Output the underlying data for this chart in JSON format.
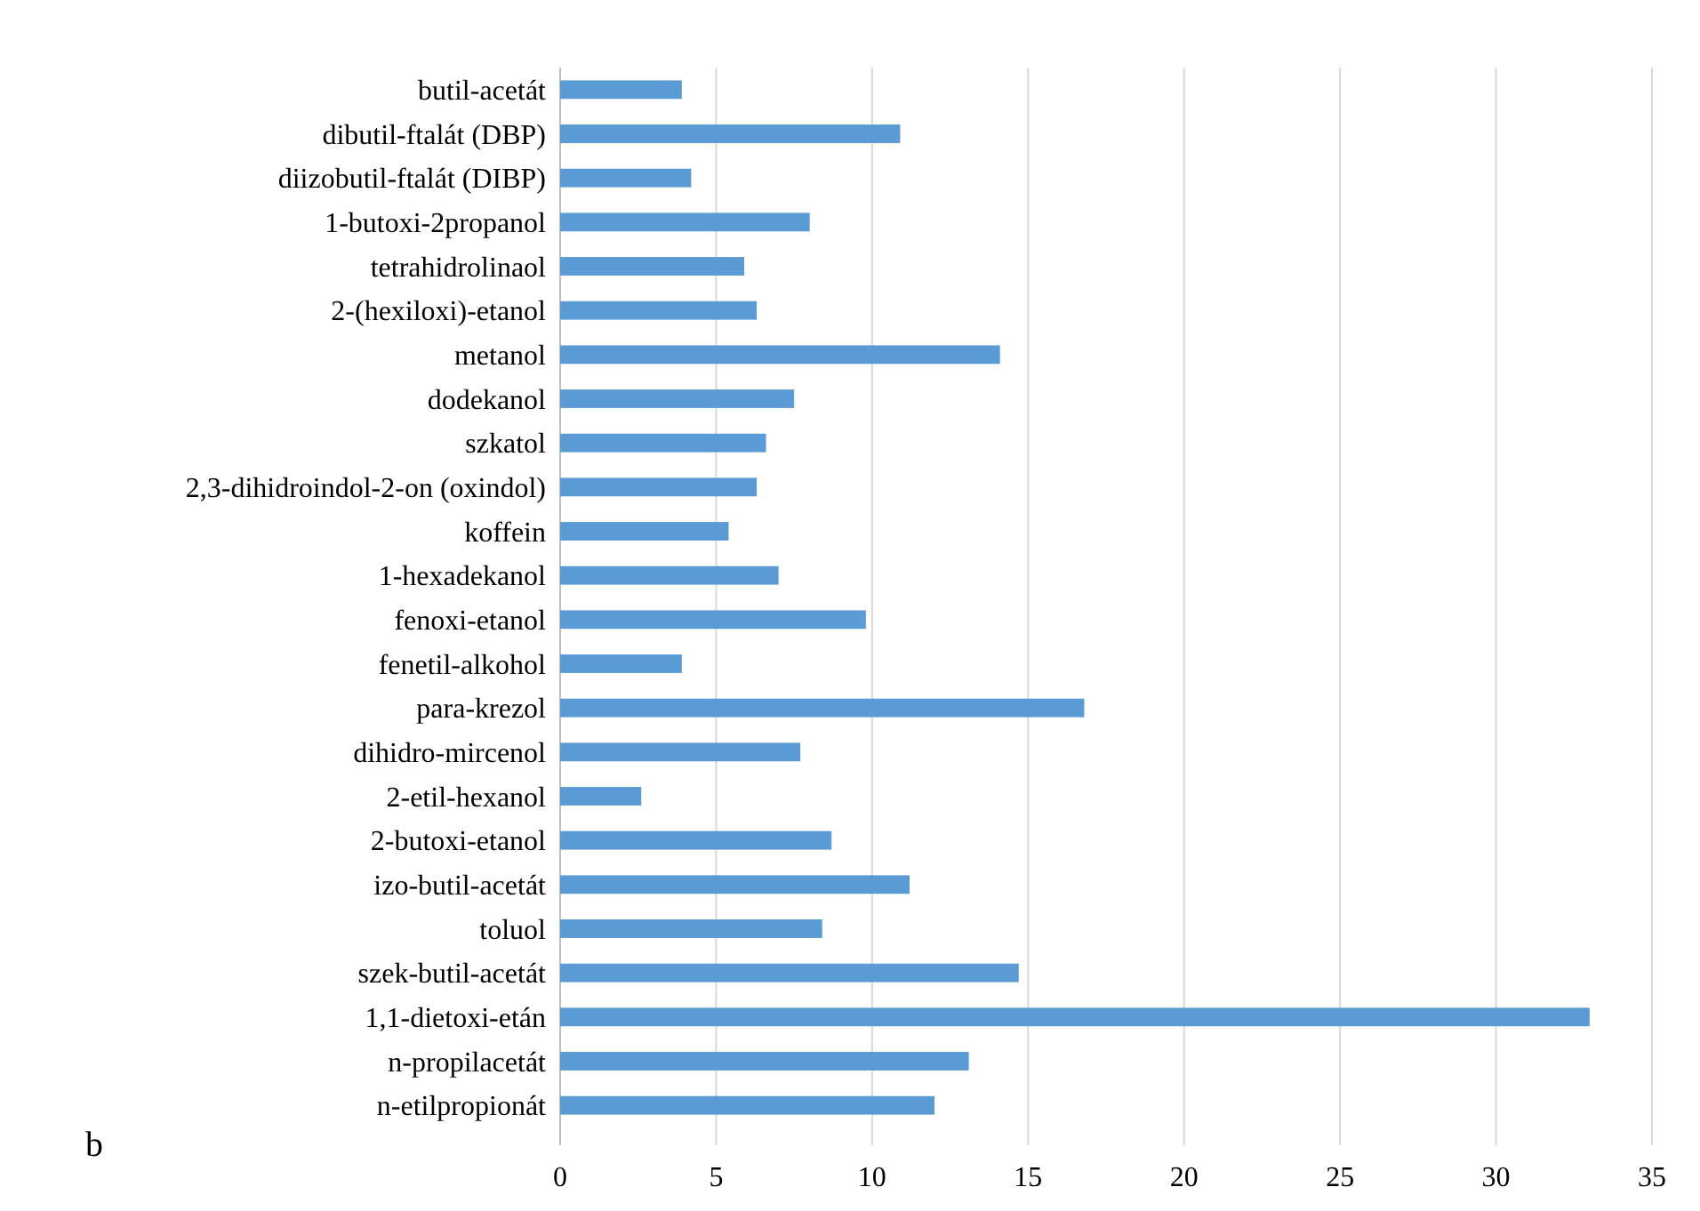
{
  "chart_data": {
    "type": "bar",
    "orientation": "horizontal",
    "categories": [
      "butil-acetát",
      "dibutil-ftalát (DBP)",
      "diizobutil-ftalát (DIBP)",
      "1-butoxi-2propanol",
      "tetrahidrolinaol",
      "2-(hexiloxi)-etanol",
      "metanol",
      "dodekanol",
      "szkatol",
      "2,3-dihidroindol-2-on (oxindol)",
      "koffein",
      "1-hexadekanol",
      "fenoxi-etanol",
      "fenetil-alkohol",
      "para-krezol",
      "dihidro-mircenol",
      "2-etil-hexanol",
      "2-butoxi-etanol",
      "izo-butil-acetát",
      "toluol",
      "szek-butil-acetát",
      "1,1-dietoxi-etán",
      "n-propilacetát",
      "n-etilpropionát"
    ],
    "values": [
      3.9,
      10.9,
      4.2,
      8.0,
      5.9,
      6.3,
      14.1,
      7.5,
      6.6,
      6.3,
      5.4,
      7.0,
      9.8,
      3.9,
      16.8,
      7.7,
      2.6,
      8.7,
      11.2,
      8.4,
      14.7,
      33.0,
      13.1,
      12.0
    ],
    "color": "#5b9bd5",
    "xlim": [
      0,
      35
    ],
    "xticks": [
      0,
      5,
      10,
      15,
      20,
      25,
      30,
      35
    ],
    "grid": "x",
    "annotations": [
      "b"
    ]
  }
}
